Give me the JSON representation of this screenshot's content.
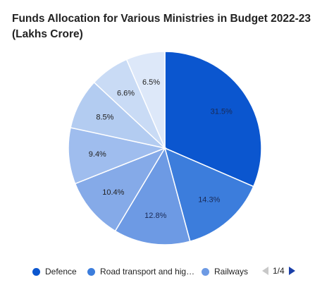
{
  "chart_data": {
    "type": "pie",
    "title_line1": "Funds Allocation for Various Ministries in Budget 2022-23",
    "title_line2": "(Lakhs Crore)",
    "slices": [
      {
        "label": "Defence",
        "value": 31.5,
        "text": "31.5%",
        "color": "#0b56cf"
      },
      {
        "label": "Road transport and hig…",
        "value": 14.3,
        "text": "14.3%",
        "color": "#3c7ddc"
      },
      {
        "label": "Railways",
        "value": 12.8,
        "text": "12.8%",
        "color": "#6d9ae4"
      },
      {
        "label": "",
        "value": 10.4,
        "text": "10.4%",
        "color": "#85aae8"
      },
      {
        "label": "",
        "value": 9.4,
        "text": "9.4%",
        "color": "#9fbdee"
      },
      {
        "label": "",
        "value": 8.5,
        "text": "8.5%",
        "color": "#b3ccf1"
      },
      {
        "label": "",
        "value": 6.6,
        "text": "6.6%",
        "color": "#c9dbf5"
      },
      {
        "label": "",
        "value": 6.5,
        "text": "6.5%",
        "color": "#dde8f9"
      }
    ],
    "legend_placement": "bottom"
  },
  "legend": {
    "items": [
      "Defence",
      "Road transport and hig…",
      "Railways"
    ],
    "colors": [
      "#0b56cf",
      "#3c7ddc",
      "#6d9ae4"
    ],
    "page": "1/4",
    "prev_icon": "triangle-left-icon",
    "next_icon": "triangle-right-icon"
  }
}
